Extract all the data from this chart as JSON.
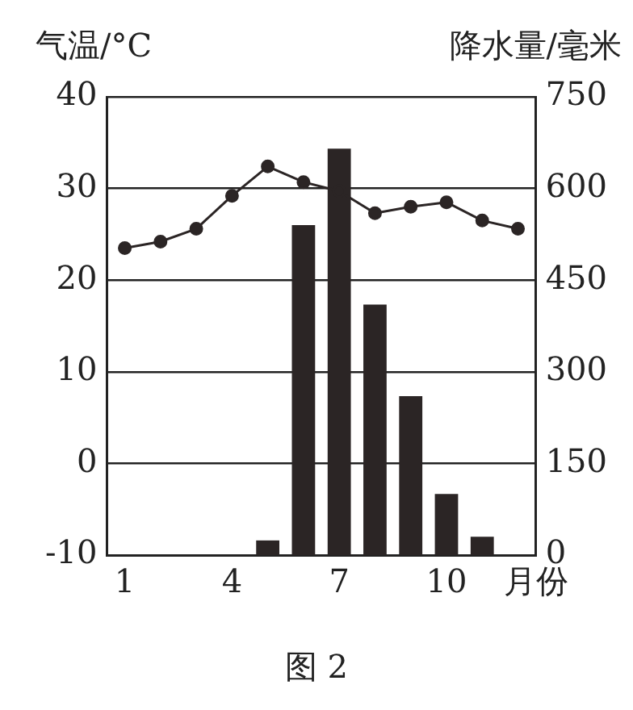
{
  "chart_data": {
    "type": "bar",
    "ylabel": "气温/°C",
    "y2label": "降水量/毫米",
    "xlabel": "月份",
    "categories": [
      "1",
      null,
      null,
      "4",
      null,
      null,
      "7",
      null,
      null,
      "10",
      null,
      null
    ],
    "series": [
      {
        "axis": "y2",
        "color": "#2b2525",
        "values": [
          0,
          0,
          0,
          0,
          24,
          540,
          665,
          410,
          260,
          100,
          30,
          0
        ]
      },
      {
        "type": "line",
        "color": "#2b2525",
        "values": [
          23.5,
          24.2,
          25.6,
          29.2,
          32.4,
          30.7,
          29.7,
          27.3,
          28,
          28.5,
          26.5,
          25.6
        ]
      }
    ],
    "ylim": [
      -10,
      40
    ],
    "yticks": [
      -10,
      0,
      10,
      20,
      30,
      40
    ],
    "y2lim": [
      0,
      750
    ],
    "y2ticks": [
      0,
      150,
      300,
      450,
      600,
      750
    ],
    "grid": "y",
    "legend": false,
    "marker": "circle",
    "line_style": "solid",
    "annotations": [
      "图 2"
    ]
  }
}
